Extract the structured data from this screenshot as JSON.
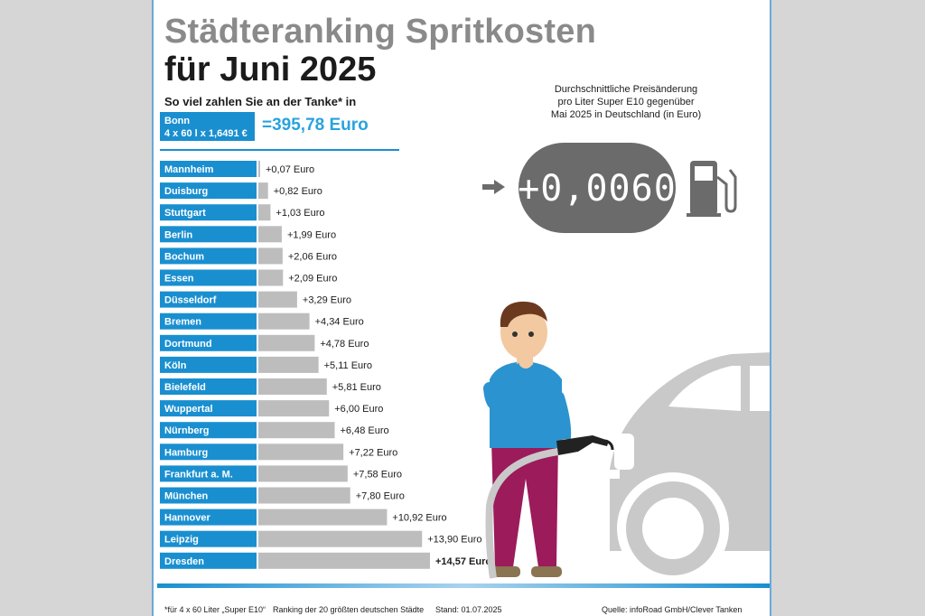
{
  "title_line1": "Städteranking Spritkosten",
  "title_line2": "für Juni 2025",
  "subtitle": "So viel zahlen Sie an der Tanke* in",
  "reference": {
    "city": "Bonn",
    "calc": "4 x 60 l x 1,6491 €",
    "total": "=395,78 Euro"
  },
  "price_change": {
    "note_lines": [
      "Durchschnittliche Preisänderung",
      "pro Liter Super E10 gegenüber",
      "Mai 2025 in Deutschland (in Euro)"
    ],
    "value": "+0,0060"
  },
  "chart_data": {
    "type": "bar",
    "orientation": "horizontal",
    "categories": [
      "Mannheim",
      "Duisburg",
      "Stuttgart",
      "Berlin",
      "Bochum",
      "Essen",
      "Düsseldorf",
      "Bremen",
      "Dortmund",
      "Köln",
      "Bielefeld",
      "Wuppertal",
      "Nürnberg",
      "Hamburg",
      "Frankfurt a. M.",
      "München",
      "Hannover",
      "Leipzig",
      "Dresden"
    ],
    "values": [
      0.07,
      0.82,
      1.03,
      1.99,
      2.06,
      2.09,
      3.29,
      4.34,
      4.78,
      5.11,
      5.81,
      6.0,
      6.48,
      7.22,
      7.58,
      7.8,
      10.92,
      13.9,
      14.57
    ],
    "value_labels": [
      "+0,07 Euro",
      "+0,82 Euro",
      "+1,03 Euro",
      "+1,99 Euro",
      "+2,06 Euro",
      "+2,09 Euro",
      "+3,29 Euro",
      "+4,34 Euro",
      "+4,78 Euro",
      "+5,11 Euro",
      "+5,81 Euro",
      "+6,00 Euro",
      "+6,48 Euro",
      "+7,22 Euro",
      "+7,58 Euro",
      "+7,80 Euro",
      "+10,92 Euro",
      "+13,90 Euro",
      "+14,57 Euro"
    ],
    "bold_last": true,
    "label_color": "#1a8fd0",
    "bar_color": "#bdbdbd"
  },
  "footer": {
    "footnote": "*für 4 x 60 Liter „Super E10“",
    "ranking": "Ranking der 20 größten deutschen Städte",
    "stand": "Stand: 01.07.2025",
    "source": "Quelle: infoRoad GmbH/Clever Tanken"
  },
  "colors": {
    "accent": "#1a8fd0",
    "bars": "#bdbdbd",
    "title_gray": "#8a8a8a",
    "display_gray": "#6b6b6b"
  }
}
